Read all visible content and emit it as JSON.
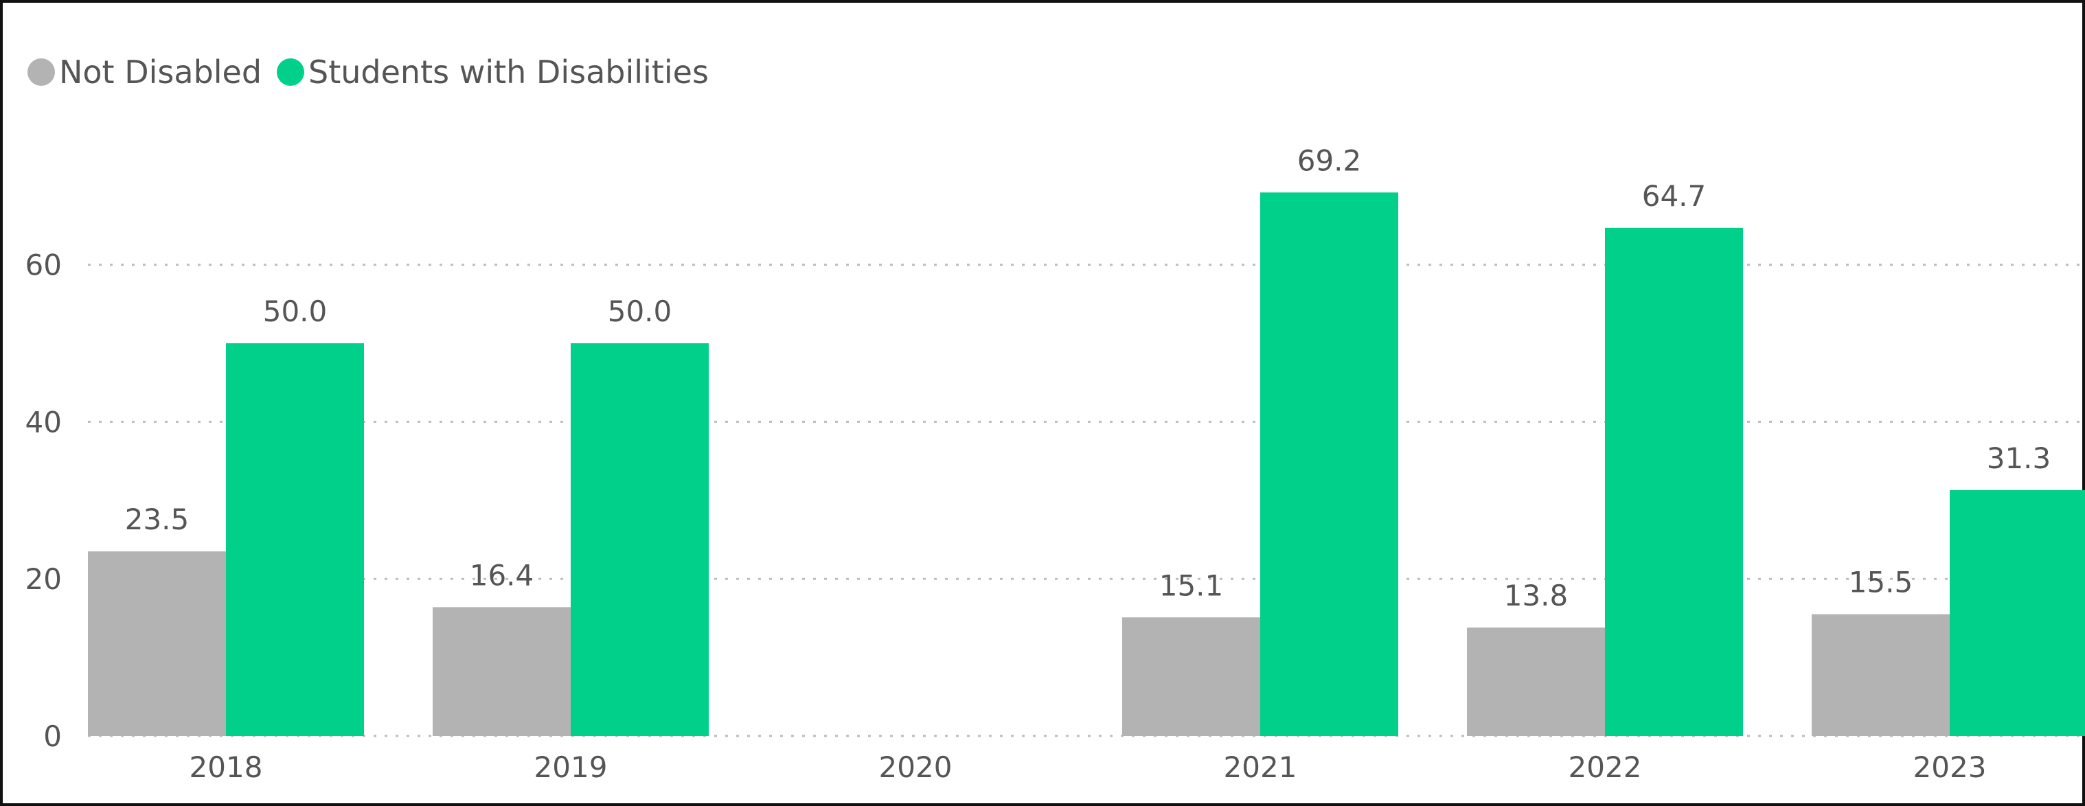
{
  "chart_data": {
    "type": "bar",
    "categories": [
      "2018",
      "2019",
      "2020",
      "2021",
      "2022",
      "2023"
    ],
    "series": [
      {
        "name": "Not Disabled",
        "color": "#B3B3B3",
        "values": [
          23.5,
          16.4,
          null,
          15.1,
          13.8,
          15.5
        ],
        "labels": [
          "23.5",
          "16.4",
          "",
          "15.1",
          "13.8",
          "15.5"
        ]
      },
      {
        "name": "Students with Disabilities",
        "color": "#00D08A",
        "values": [
          50.0,
          50.0,
          null,
          69.2,
          64.7,
          31.3
        ],
        "labels": [
          "50.0",
          "50.0",
          "",
          "69.2",
          "64.7",
          "31.3"
        ]
      }
    ],
    "yticks": [
      0,
      20,
      40,
      60
    ],
    "ytick_labels": [
      "0",
      "20",
      "40",
      "60"
    ],
    "ylim": [
      0,
      75
    ],
    "grid": true,
    "legend_position": "top-left",
    "xlabel": "",
    "ylabel": "",
    "title": ""
  }
}
